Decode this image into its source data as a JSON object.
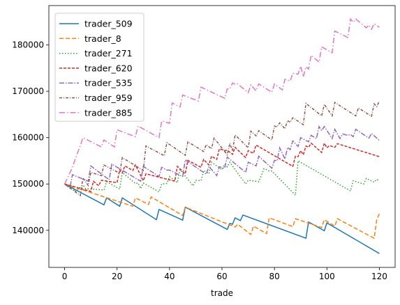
{
  "chart_data": {
    "type": "line",
    "xlabel": "trade",
    "ylabel": "",
    "xlim": [
      -6,
      126
    ],
    "ylim": [
      132000,
      188500
    ],
    "xticks": [
      0,
      20,
      40,
      60,
      80,
      100,
      120
    ],
    "yticks": [
      140000,
      150000,
      160000,
      170000,
      180000
    ],
    "grid": false,
    "legend": "top-left",
    "series": [
      {
        "name": "trader_509",
        "color": "#1f77b4",
        "dash": "solid",
        "x": [
          0,
          15,
          16,
          21,
          22,
          35,
          36,
          45,
          46,
          62,
          63,
          64,
          65,
          67,
          68,
          92,
          93,
          99,
          100,
          120
        ],
        "y": [
          150000,
          145500,
          147000,
          145200,
          147000,
          142300,
          144500,
          142200,
          145000,
          140200,
          141500,
          141300,
          142700,
          142100,
          143300,
          138300,
          141800,
          139900,
          141600,
          135000
        ]
      },
      {
        "name": "trader_8",
        "color": "#ff7f0e",
        "dash": "6,3",
        "x": [
          0,
          26,
          27,
          32,
          33,
          45,
          46,
          65,
          66,
          71,
          72,
          77,
          78,
          87,
          88,
          98,
          99,
          103,
          104,
          118,
          119,
          120
        ],
        "y": [
          150000,
          145200,
          147000,
          145600,
          147200,
          143200,
          145000,
          140700,
          141300,
          139100,
          140900,
          139300,
          142700,
          140800,
          142500,
          140600,
          142300,
          140900,
          142500,
          138300,
          142300,
          143600
        ]
      },
      {
        "name": "trader_271",
        "color": "#2ca02c",
        "dash": "1.5,2.5",
        "x": [
          0,
          3,
          4,
          7,
          8,
          15,
          16,
          21,
          22,
          27,
          28,
          29,
          30,
          36,
          37,
          39,
          40,
          43,
          44,
          49,
          50,
          52,
          53,
          55,
          56,
          60,
          61,
          62,
          63,
          69,
          70,
          74,
          75,
          76,
          77,
          78,
          79,
          88,
          89,
          109,
          110,
          114,
          115,
          118,
          119,
          120
        ],
        "y": [
          150000,
          149200,
          148300,
          149800,
          149000,
          148700,
          150500,
          148900,
          152500,
          150100,
          150200,
          149000,
          150200,
          148300,
          150000,
          150100,
          151600,
          150300,
          153100,
          149600,
          150800,
          150700,
          152900,
          152200,
          154700,
          153100,
          154300,
          153700,
          154700,
          150000,
          150800,
          150500,
          151800,
          153300,
          153100,
          152800,
          152800,
          147600,
          155000,
          148500,
          150700,
          150000,
          151200,
          150400,
          151000,
          150700
        ]
      },
      {
        "name": "trader_620",
        "color": "#d62728",
        "dash": "4,2",
        "x": [
          0,
          10,
          11,
          13,
          14,
          20,
          21,
          22,
          23,
          26,
          27,
          30,
          31,
          42,
          43,
          46,
          47,
          52,
          53,
          55,
          56,
          58,
          59,
          61,
          62,
          64,
          65,
          69,
          70,
          72,
          73,
          87,
          88,
          89,
          90,
          91,
          92,
          93,
          94,
          98,
          99,
          100,
          101,
          103,
          104,
          120
        ],
        "y": [
          150000,
          148400,
          150600,
          149600,
          150800,
          150300,
          153100,
          152400,
          153900,
          152900,
          154100,
          150700,
          152200,
          150600,
          153800,
          152200,
          155100,
          153600,
          155300,
          154100,
          156000,
          155300,
          157600,
          157200,
          157300,
          156400,
          157900,
          155700,
          157200,
          156600,
          158400,
          153800,
          156000,
          155900,
          157200,
          156300,
          158200,
          157900,
          158800,
          156800,
          158800,
          157800,
          158300,
          157900,
          158700,
          155900
        ]
      },
      {
        "name": "trader_535",
        "color": "#9467bd",
        "dash": "7,2,1.5,2",
        "x": [
          0,
          2,
          3,
          9,
          10,
          17,
          18,
          29,
          30,
          36,
          37,
          39,
          40,
          45,
          46,
          54,
          55,
          58,
          59,
          61,
          62,
          69,
          70,
          73,
          74,
          79,
          80,
          81,
          82,
          84,
          85,
          86,
          87,
          89,
          90,
          93,
          94,
          96,
          97,
          98,
          99,
          102,
          103,
          105,
          106,
          108,
          109,
          110,
          111,
          116,
          117,
          120
        ],
        "y": [
          150000,
          149100,
          152000,
          150600,
          153900,
          150900,
          154300,
          150600,
          153800,
          151600,
          153600,
          153000,
          153000,
          151600,
          155200,
          152100,
          153800,
          151800,
          153700,
          153400,
          155800,
          152500,
          154700,
          153900,
          156000,
          153400,
          155100,
          155000,
          157800,
          155400,
          157900,
          157400,
          159300,
          158100,
          160000,
          159100,
          160500,
          159800,
          162400,
          161500,
          162400,
          159800,
          161800,
          159800,
          160800,
          160500,
          160700,
          160200,
          161800,
          159900,
          160900,
          159400
        ]
      },
      {
        "name": "trader_959",
        "color": "#8c564b",
        "dash": "4,2,1,2",
        "x": [
          0,
          6,
          7,
          9,
          10,
          14,
          15,
          21,
          22,
          30,
          31,
          38,
          39,
          46,
          47,
          53,
          54,
          56,
          57,
          62,
          63,
          64,
          65,
          70,
          71,
          73,
          74,
          79,
          80,
          81,
          82,
          84,
          85,
          86,
          87,
          91,
          92,
          98,
          99,
          102,
          103,
          111,
          112,
          117,
          118,
          119,
          120
        ],
        "y": [
          150000,
          147500,
          151300,
          149700,
          152500,
          151800,
          154100,
          152300,
          155700,
          152900,
          158200,
          156100,
          158900,
          156200,
          159100,
          157000,
          158500,
          157600,
          159900,
          156300,
          158800,
          157100,
          160600,
          157800,
          161400,
          160400,
          161500,
          159500,
          162500,
          162300,
          163200,
          161900,
          163700,
          163300,
          164300,
          162800,
          167400,
          164700,
          167200,
          164700,
          167600,
          164700,
          166400,
          164600,
          167300,
          166700,
          167900
        ]
      },
      {
        "name": "trader_885",
        "color": "#e377c2",
        "dash": "8,3,1.5,3",
        "x": [
          0,
          3,
          4,
          6,
          7,
          14,
          15,
          19,
          20,
          27,
          28,
          36,
          37,
          40,
          41,
          44,
          45,
          51,
          52,
          61,
          62,
          63,
          64,
          65,
          66,
          70,
          71,
          73,
          74,
          79,
          80,
          83,
          84,
          86,
          87,
          89,
          90,
          91,
          92,
          93,
          94,
          97,
          98,
          102,
          103,
          108,
          109,
          110,
          111,
          115,
          116,
          117,
          118,
          119,
          120
        ],
        "y": [
          150000,
          153600,
          155300,
          158300,
          160000,
          158000,
          159500,
          158000,
          161700,
          160200,
          162500,
          160000,
          163600,
          163100,
          167500,
          166600,
          169200,
          167900,
          170900,
          168500,
          170500,
          170500,
          171800,
          171500,
          171600,
          169700,
          171400,
          170100,
          171600,
          169800,
          171600,
          170300,
          172600,
          172200,
          173900,
          173700,
          175400,
          173100,
          175300,
          174800,
          177800,
          176300,
          179600,
          178300,
          183000,
          181600,
          185600,
          184900,
          185600,
          183700,
          184300,
          183400,
          184600,
          184200,
          183800
        ]
      }
    ]
  }
}
